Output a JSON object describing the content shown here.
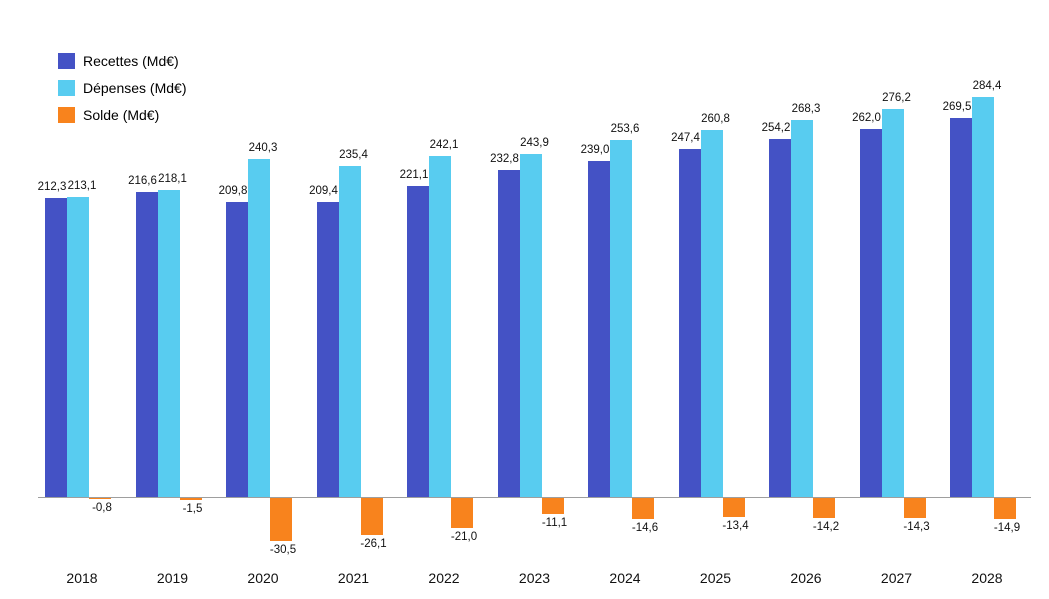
{
  "chart_data": {
    "type": "bar",
    "categories": [
      "2018",
      "2019",
      "2020",
      "2021",
      "2022",
      "2023",
      "2024",
      "2025",
      "2026",
      "2027",
      "2028"
    ],
    "series": [
      {
        "key": "recettes",
        "name": "Recettes (Md€)",
        "color": "#4452c5",
        "values": [
          212.3,
          216.6,
          209.8,
          209.4,
          221.1,
          232.8,
          239.0,
          247.4,
          254.2,
          262.0,
          269.5
        ],
        "labels": [
          "212,3",
          "216,6",
          "209,8",
          "209,4",
          "221,1",
          "232,8",
          "239,0",
          "247,4",
          "254,2",
          "262,0",
          "269,5"
        ]
      },
      {
        "key": "depenses",
        "name": "Dépenses (Md€)",
        "color": "#58ccf0",
        "values": [
          213.1,
          218.1,
          240.3,
          235.4,
          242.1,
          243.9,
          253.6,
          260.8,
          268.3,
          276.2,
          284.4
        ],
        "labels": [
          "213,1",
          "218,1",
          "240,3",
          "235,4",
          "242,1",
          "243,9",
          "253,6",
          "260,8",
          "268,3",
          "276,2",
          "284,4"
        ]
      },
      {
        "key": "solde",
        "name": "Solde (Md€)",
        "color": "#f8831d",
        "values": [
          -0.8,
          -1.5,
          -30.5,
          -26.1,
          -21.0,
          -11.1,
          -14.6,
          -13.4,
          -14.2,
          -14.3,
          -14.9
        ],
        "labels": [
          "-0,8",
          "-1,5",
          "-30,5",
          "-26,1",
          "-21,0",
          "-11,1",
          "-14,6",
          "-13,4",
          "-14,2",
          "-14,3",
          "-14,9"
        ]
      }
    ],
    "title": "",
    "xlabel": "",
    "ylabel": "",
    "ylim": [
      -35,
      290
    ],
    "grid": false,
    "y_axis_visible": false,
    "value_labels": true,
    "legend_position": "top-left"
  }
}
